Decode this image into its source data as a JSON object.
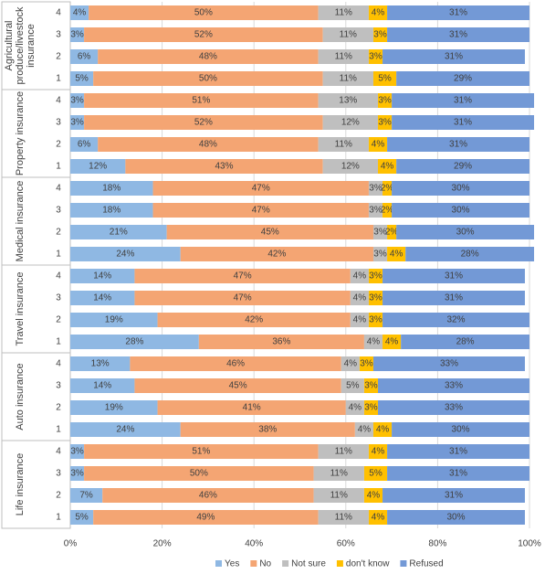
{
  "chart_data": {
    "type": "stacked-bar-horizontal",
    "groups": [
      {
        "name": "Agricultural produce/livestock insurance",
        "categories": [
          "4",
          "3",
          "2",
          "1"
        ]
      },
      {
        "name": "Property insurance",
        "categories": [
          "4",
          "3",
          "2",
          "1"
        ]
      },
      {
        "name": "Medical insurance",
        "categories": [
          "4",
          "3",
          "2",
          "1"
        ]
      },
      {
        "name": "Travel insurance",
        "categories": [
          "4",
          "3",
          "2",
          "1"
        ]
      },
      {
        "name": "Auto insurance",
        "categories": [
          "4",
          "3",
          "2",
          "1"
        ]
      },
      {
        "name": "Life insurance",
        "categories": [
          "4",
          "3",
          "2",
          "1"
        ]
      }
    ],
    "series": [
      {
        "name": "Yes",
        "color": "#8fb8e3",
        "values": [
          4,
          3,
          6,
          5,
          3,
          3,
          6,
          12,
          18,
          18,
          21,
          24,
          14,
          14,
          19,
          28,
          13,
          14,
          19,
          24,
          3,
          3,
          7,
          5
        ],
        "value_labels": [
          "4%",
          "3%",
          "6%",
          "5%",
          "3%",
          "3%",
          "6%",
          "12%",
          "18%",
          "18%",
          "21%",
          "24%",
          "14%",
          "14%",
          "19%",
          "28%",
          "13%",
          "14%",
          "19%",
          "24%",
          "3%",
          "3%",
          "7%",
          "5%"
        ]
      },
      {
        "name": "No",
        "color": "#f4a573",
        "values": [
          50,
          52,
          48,
          50,
          51,
          52,
          48,
          43,
          47,
          47,
          45,
          42,
          47,
          47,
          42,
          36,
          46,
          45,
          41,
          38,
          51,
          50,
          46,
          49
        ],
        "value_labels": [
          "50%",
          "52%",
          "48%",
          "50%",
          "51%",
          "52%",
          "48%",
          "43%",
          "47%",
          "47%",
          "45%",
          "42%",
          "47%",
          "47%",
          "42%",
          "36%",
          "46%",
          "45%",
          "41%",
          "38%",
          "51%",
          "50%",
          "46%",
          "49%"
        ]
      },
      {
        "name": "Not sure",
        "color": "#bfbfbf",
        "values": [
          11,
          11,
          11,
          11,
          13,
          12,
          11,
          12,
          3,
          3,
          3,
          3,
          4,
          4,
          4,
          4,
          4,
          5,
          4,
          4,
          11,
          11,
          11,
          11
        ],
        "value_labels": [
          "11%",
          "11%",
          "11%",
          "11%",
          "13%",
          "12%",
          "11%",
          "12%",
          "3%",
          "3%",
          "3%",
          "3%",
          "4%",
          "4%",
          "4%",
          "4%",
          "4%",
          "5%",
          "4%",
          "4%",
          "11%",
          "11%",
          "11%",
          "11%"
        ]
      },
      {
        "name": "don't know",
        "color": "#ffc000",
        "values": [
          4,
          3,
          3,
          5,
          3,
          3,
          4,
          4,
          2,
          2,
          2,
          4,
          3,
          3,
          3,
          4,
          3,
          3,
          3,
          4,
          4,
          5,
          4,
          4
        ],
        "value_labels": [
          "4%",
          "3%",
          "3%",
          "5%",
          "3%",
          "3%",
          "4%",
          "4%",
          "2%",
          "2%",
          "2%",
          "4%",
          "3%",
          "3%",
          "3%",
          "4%",
          "3%",
          "3%",
          "3%",
          "4%",
          "4%",
          "5%",
          "4%",
          "4%"
        ]
      },
      {
        "name": "Refused",
        "color": "#7399d6",
        "values": [
          31,
          31,
          31,
          29,
          31,
          31,
          31,
          29,
          30,
          30,
          30,
          28,
          31,
          31,
          32,
          28,
          33,
          33,
          33,
          30,
          31,
          31,
          31,
          30
        ],
        "value_labels": [
          "31%",
          "31%",
          "31%",
          "29%",
          "31%",
          "31%",
          "31%",
          "29%",
          "30%",
          "30%",
          "30%",
          "28%",
          "31%",
          "31%",
          "32%",
          "28%",
          "33%",
          "33%",
          "33%",
          "30%",
          "31%",
          "31%",
          "31%",
          "30%"
        ]
      }
    ],
    "xlim": [
      0,
      100
    ],
    "xticks": [
      {
        "value": 0,
        "label": "0%"
      },
      {
        "value": 20,
        "label": "20%"
      },
      {
        "value": 40,
        "label": "40%"
      },
      {
        "value": 60,
        "label": "60%"
      },
      {
        "value": 80,
        "label": "80%"
      },
      {
        "value": 100,
        "label": "100%"
      }
    ],
    "grid": true
  }
}
